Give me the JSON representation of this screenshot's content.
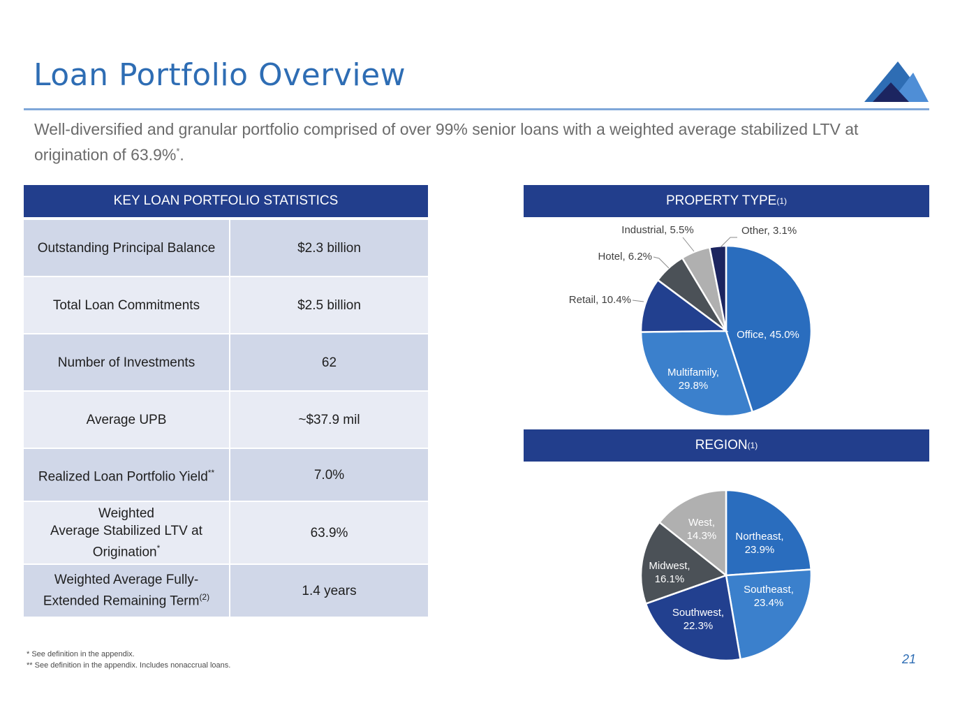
{
  "slide": {
    "title": "Loan Portfolio Overview",
    "subtitle_main": "Well-diversified and granular portfolio comprised of over 99% senior loans with a weighted average stabilized LTV at origination of 63.9%",
    "subtitle_mark": "*",
    "subtitle_end": ".",
    "page_number": "21"
  },
  "statistics": {
    "header": "KEY LOAN PORTFOLIO STATISTICS",
    "rows": [
      {
        "label": "Outstanding Principal Balance",
        "mark": "",
        "value": "$2.3 billion"
      },
      {
        "label": "Total Loan Commitments",
        "mark": "",
        "value": "$2.5 billion"
      },
      {
        "label": "Number of Investments",
        "mark": "",
        "value": "62"
      },
      {
        "label": "Average UPB",
        "mark": "",
        "value": "~$37.9 mil"
      },
      {
        "label": "Realized Loan Portfolio Yield",
        "mark": "**",
        "value": "7.0%"
      },
      {
        "label_lines": [
          "Weighted",
          "Average Stabilized LTV at",
          "Origination"
        ],
        "mark": "*",
        "value": "63.9%"
      },
      {
        "label_lines": [
          "Weighted Average Fully-",
          "Extended Remaining Term"
        ],
        "mark": "(2)",
        "value": "1.4 years"
      }
    ]
  },
  "footnotes": [
    "* See definition in the appendix.",
    "** See definition in the appendix. Includes nonaccrual loans."
  ],
  "colors": {
    "title_blue": "#2E6DB4",
    "header_navy": "#223E8C",
    "row_dark": "#D0D7E8",
    "row_light": "#E8EBF4"
  },
  "chart_data": [
    {
      "type": "pie",
      "title": "PROPERTY TYPE",
      "title_mark": "(1)",
      "slices": [
        {
          "label": "Office",
          "value": 45.0,
          "text": "Office, 45.0%",
          "color": "#2A6DBE"
        },
        {
          "label": "Multifamily",
          "value": 29.8,
          "text": "Multifamily, 29.8%",
          "color": "#3B80CC"
        },
        {
          "label": "Retail",
          "value": 10.4,
          "text": "Retail, 10.4%",
          "color": "#22408F"
        },
        {
          "label": "Hotel",
          "value": 6.2,
          "text": "Hotel, 6.2%",
          "color": "#4B5157"
        },
        {
          "label": "Industrial",
          "value": 5.5,
          "text": "Industrial, 5.5%",
          "color": "#B0B0B0"
        },
        {
          "label": "Other",
          "value": 3.1,
          "text": "Other, 3.1%",
          "color": "#1C2560"
        }
      ]
    },
    {
      "type": "pie",
      "title": "REGION",
      "title_mark": "(1)",
      "slices": [
        {
          "label": "Northeast",
          "value": 23.9,
          "text": "Northeast, 23.9%",
          "color": "#2A6DBE"
        },
        {
          "label": "Southeast",
          "value": 23.4,
          "text": "Southeast, 23.4%",
          "color": "#3B80CC"
        },
        {
          "label": "Southwest",
          "value": 22.3,
          "text": "Southwest, 22.3%",
          "color": "#22408F"
        },
        {
          "label": "Midwest",
          "value": 16.1,
          "text": "Midwest, 16.1%",
          "color": "#4B5157"
        },
        {
          "label": "West",
          "value": 14.3,
          "text": "West, 14.3%",
          "color": "#B0B0B0"
        }
      ]
    }
  ]
}
